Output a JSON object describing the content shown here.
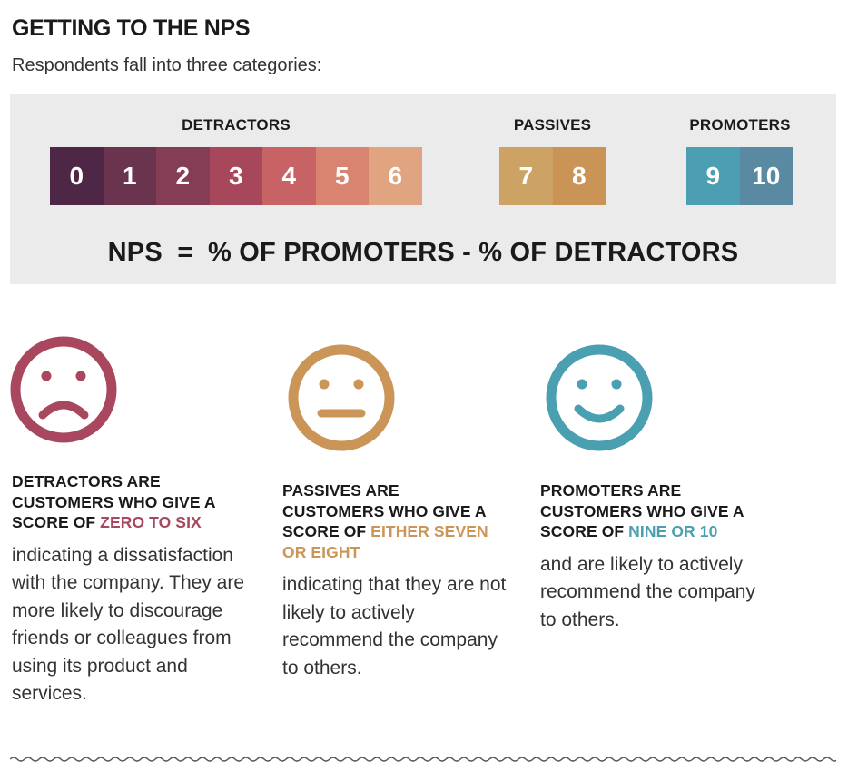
{
  "header": {
    "title": "GETTING TO THE NPS",
    "subtitle": "Respondents fall into three categories:"
  },
  "scale": {
    "groups": [
      {
        "label": "DETRACTORS",
        "scores": [
          "0",
          "1",
          "2",
          "3",
          "4",
          "5",
          "6"
        ],
        "colors": [
          "#4e2646",
          "#6b344e",
          "#843d55",
          "#a7475b",
          "#c86365",
          "#d98471",
          "#e0a580"
        ]
      },
      {
        "label": "PASSIVES",
        "scores": [
          "7",
          "8"
        ],
        "colors": [
          "#cca364",
          "#c99456"
        ]
      },
      {
        "label": "PROMOTERS",
        "scores": [
          "9",
          "10"
        ],
        "colors": [
          "#4c9fb2",
          "#5a8aa2"
        ]
      }
    ],
    "formula": "NPS  =  % OF PROMOTERS - % OF DETRACTORS"
  },
  "categories": {
    "detractors": {
      "icon": "sad-face-icon",
      "color": "#a8475e",
      "head_prefix": "DETRACTORS ARE CUSTOMERS WHO GIVE A SCORE OF ",
      "head_highlight": "ZERO TO SIX",
      "body": "indicating a dissatisfaction with the company. They are more likely to discourage friends or colleagues from using its product and services."
    },
    "passives": {
      "icon": "neutral-face-icon",
      "color": "#cc9558",
      "head_prefix": "PASSIVES ARE CUSTOMERS WHO GIVE A SCORE OF ",
      "head_highlight": "EITHER SEVEN OR EIGHT",
      "body": "indicating that they are not likely to actively recommend the company to others."
    },
    "promoters": {
      "icon": "happy-face-icon",
      "color": "#4a9fb1",
      "head_prefix": "PROMOTERS ARE CUSTOMERS WHO GIVE A SCORE OF ",
      "head_highlight": "NINE OR 10",
      "body": "and are likely to actively recommend the company to others."
    }
  }
}
